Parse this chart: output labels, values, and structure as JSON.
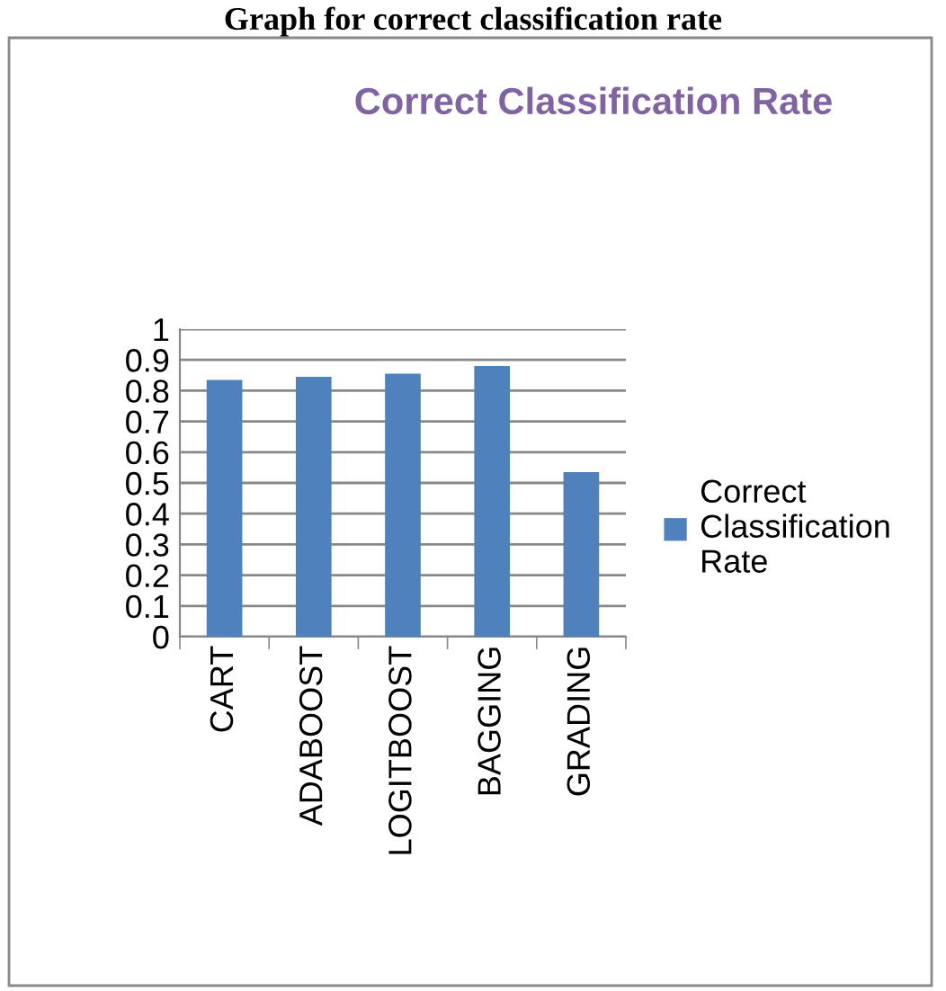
{
  "chart_data": {
    "type": "bar",
    "title": "Graph for correct classification rate",
    "subtitle": "Correct Classification Rate",
    "categories": [
      "CART",
      "ADABOOST",
      "LOGITBOOST",
      "BAGGING",
      "GRADING"
    ],
    "series": [
      {
        "name": "Correct Classification Rate",
        "color": "#4f81bd",
        "values": [
          0.835,
          0.845,
          0.855,
          0.88,
          0.535
        ]
      }
    ],
    "ylim": [
      0,
      1
    ],
    "yticks": [
      0,
      0.1,
      0.2,
      0.3,
      0.4,
      0.5,
      0.6,
      0.7,
      0.8,
      0.9,
      1
    ],
    "grid": "y",
    "legend": "right"
  }
}
